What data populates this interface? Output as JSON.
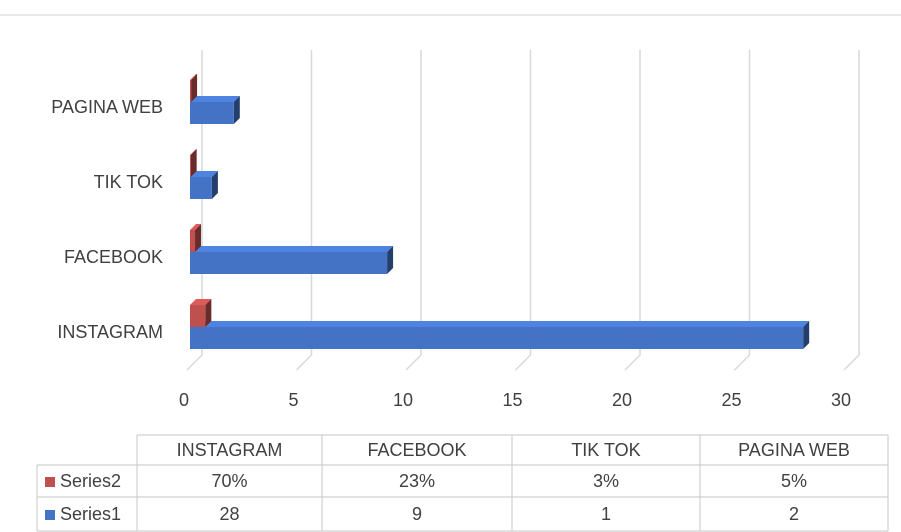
{
  "chart_data": {
    "type": "bar",
    "categories": [
      "INSTAGRAM",
      "FACEBOOK",
      "TIK TOK",
      "PAGINA WEB"
    ],
    "series": [
      {
        "name": "Series1",
        "color": "#4472c4",
        "values": [
          28,
          9,
          1,
          2
        ]
      },
      {
        "name": "Series2",
        "color": "#c0504d",
        "values": [
          0.7,
          0.23,
          0.03,
          0.05
        ],
        "value_labels": [
          "70%",
          "23%",
          "3%",
          "5%"
        ]
      }
    ],
    "xlim": [
      0,
      30
    ],
    "xticks": [
      0,
      5,
      10,
      15,
      20,
      25,
      30
    ],
    "grid": true
  }
}
